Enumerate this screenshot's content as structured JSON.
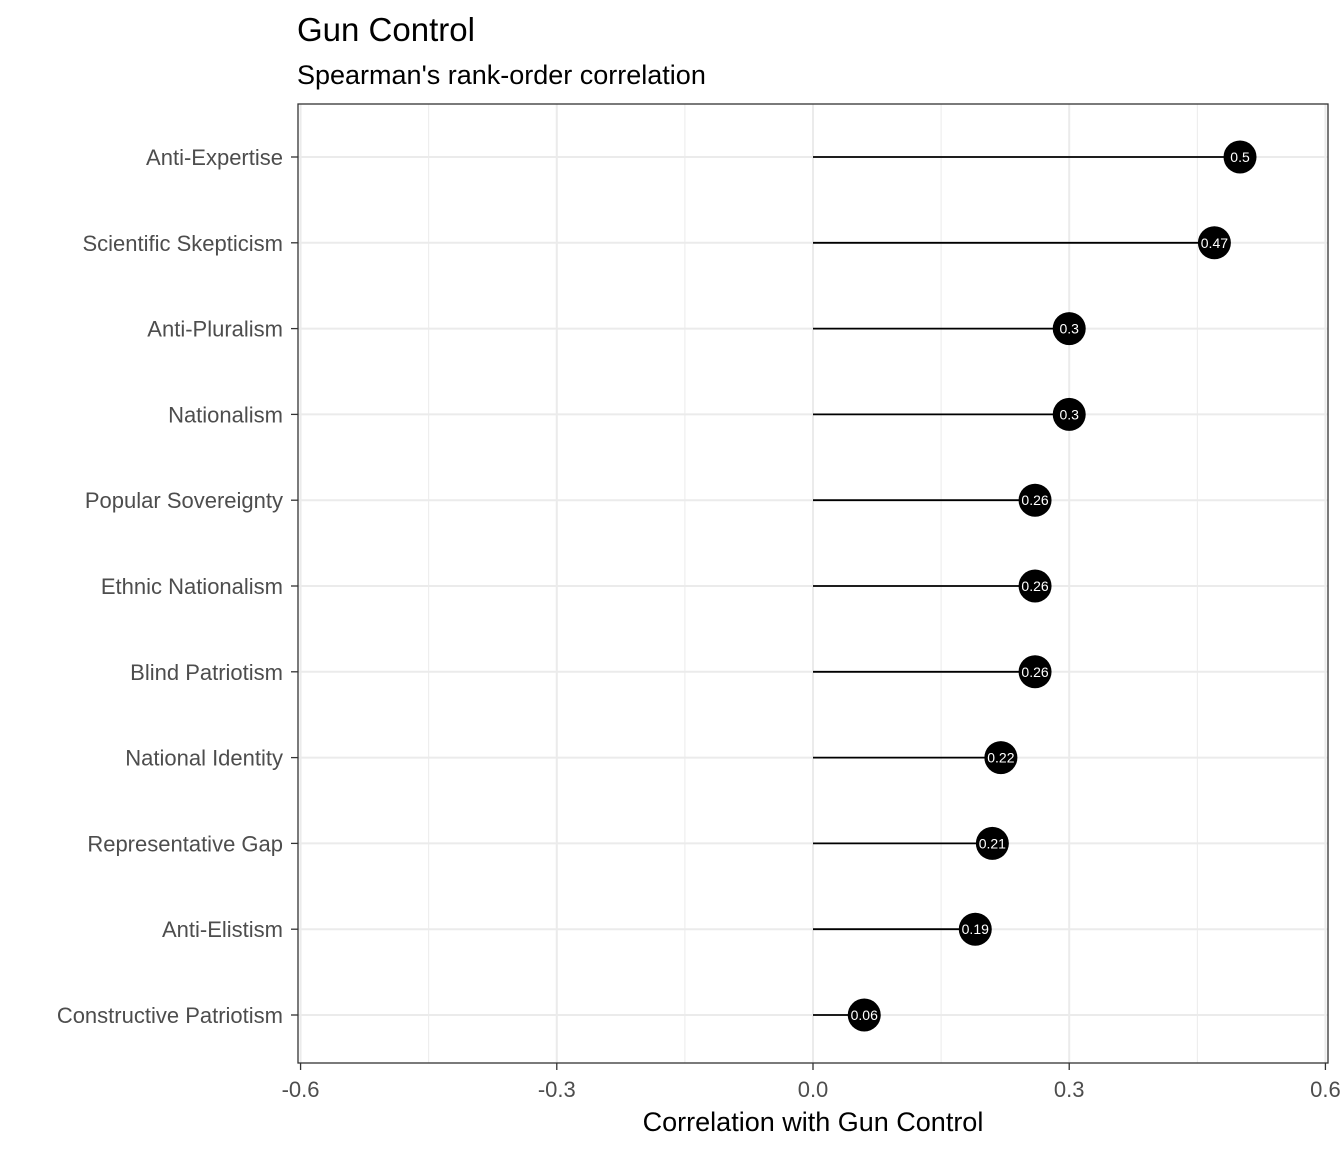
{
  "chart_data": {
    "type": "lollipop",
    "title": "Gun Control",
    "subtitle": "Spearman's rank-order correlation",
    "xlabel": "Correlation with Gun Control",
    "ylabel": "",
    "xlim": [
      -0.6,
      0.6
    ],
    "x_ticks": [
      -0.6,
      -0.3,
      0.0,
      0.3,
      0.6
    ],
    "x_tick_labels": [
      "-0.6",
      "-0.3",
      "0.0",
      "0.3",
      "0.6"
    ],
    "categories": [
      "Anti-Expertise",
      "Scientific Skepticism",
      "Anti-Pluralism",
      "Nationalism",
      "Popular Sovereignty",
      "Ethnic Nationalism",
      "Blind Patriotism",
      "National Identity",
      "Representative Gap",
      "Anti-Elistism",
      "Constructive Patriotism"
    ],
    "values": [
      0.5,
      0.47,
      0.3,
      0.3,
      0.26,
      0.26,
      0.26,
      0.22,
      0.21,
      0.19,
      0.06
    ],
    "value_labels": [
      "0.5",
      "0.47",
      "0.3",
      "0.3",
      "0.26",
      "0.26",
      "0.26",
      "0.22",
      "0.21",
      "0.19",
      "0.06"
    ],
    "baseline": 0,
    "grid": true,
    "legend": "none",
    "colors": {
      "point": "#000000",
      "segment": "#000000",
      "value_text": "#ffffff",
      "grid": "#ebebeb",
      "panel_border": "#333333",
      "axis_text": "#4d4d4d"
    }
  }
}
